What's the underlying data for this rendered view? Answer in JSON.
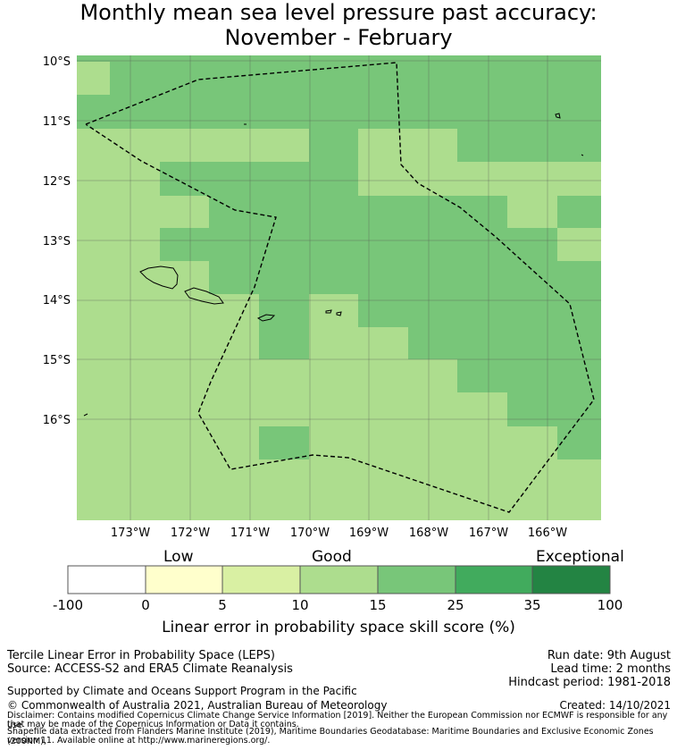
{
  "title": {
    "line1": "Monthly mean sea level pressure past accuracy:",
    "line2": "November - February"
  },
  "map": {
    "lat_labels": [
      "10°S",
      "11°S",
      "12°S",
      "13°S",
      "14°S",
      "15°S",
      "16°S"
    ],
    "lon_labels": [
      "173°W",
      "172°W",
      "171°W",
      "170°W",
      "169°W",
      "168°W",
      "167°W",
      "166°W"
    ]
  },
  "colorbar": {
    "category_low": "Low",
    "category_good": "Good",
    "category_exceptional": "Exceptional",
    "ticks": [
      "-100",
      "0",
      "5",
      "10",
      "15",
      "25",
      "35",
      "100"
    ],
    "colors": [
      "#ffffff",
      "#ffffcc",
      "#d9f0a3",
      "#addd8e",
      "#78c679",
      "#41ab5d",
      "#238443"
    ],
    "label": "Linear error in probability space skill score (%)"
  },
  "footer": {
    "method": "Tercile Linear Error in Probability Space (LEPS)",
    "source": "Source: ACCESS-S2 and ERA5 Climate Reanalysis",
    "run_date": "Run date: 9th August",
    "lead_time": "Lead time: 2 months",
    "hindcast": "Hindcast period: 1981-2018",
    "support": "Supported by Climate and Oceans Support Program in the Pacific",
    "copyright": "© Commonwealth of Australia 2021, Australian Bureau of Meteorology",
    "created": "Created: 14/10/2021",
    "disclaimer1": "Disclaimer: Contains modified Copernicus Climate Change Service Information [2019]. Neither the European Commission nor ECMWF is responsible for any use",
    "disclaimer2": "that may be made of the Copernicus Information or Data it contains.",
    "shapefile1": "Shapefile data extracted from Flanders Marine Institute (2019), Maritime Boundaries Geodatabase: Maritime Boundaries and Exclusive Economic Zones (200NM),",
    "shapefile2": "version 11. Available online at http://www.marineregions.org/."
  }
}
